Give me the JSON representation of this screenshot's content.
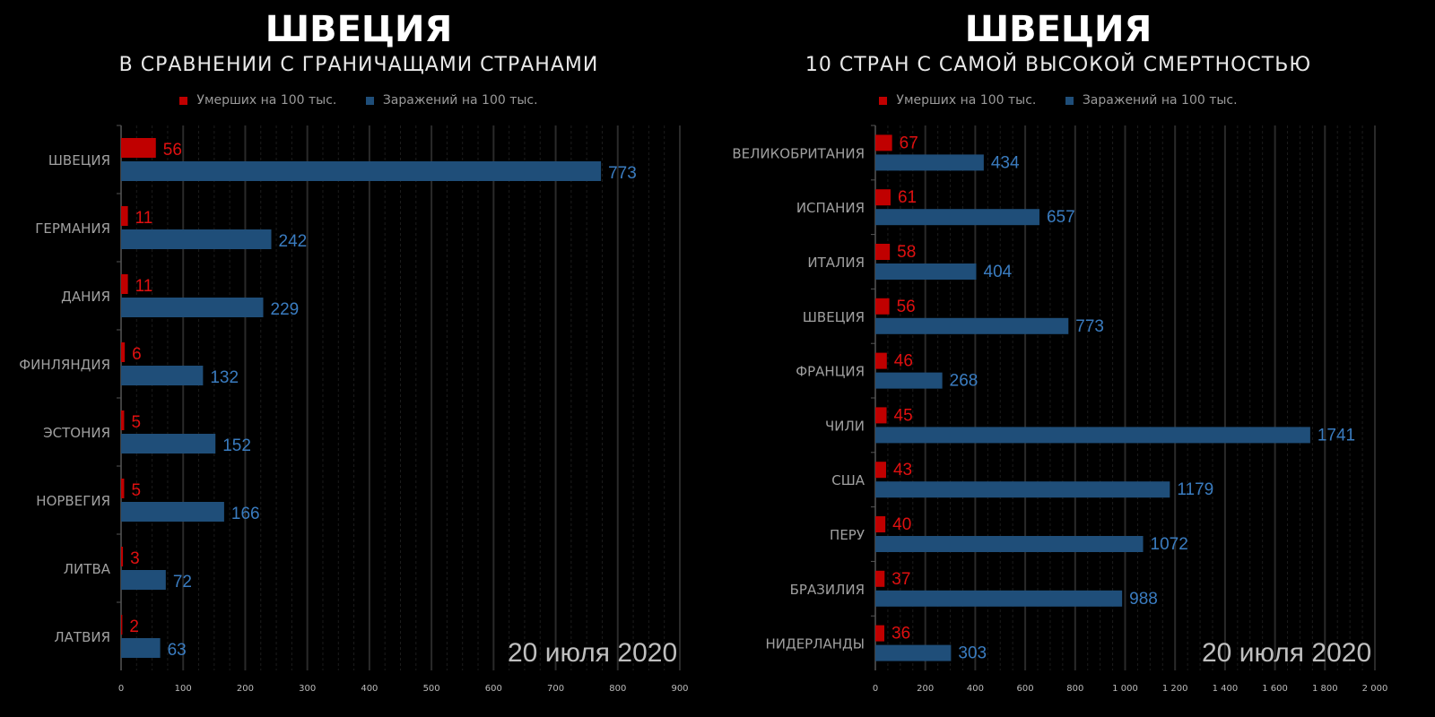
{
  "colors": {
    "deaths": "#c00000",
    "cases": "#1f4e79",
    "deaths_label": "#e01010",
    "cases_label": "#3a7cc0",
    "category_label": "#a0a0a0"
  },
  "chart_data": [
    {
      "type": "bar",
      "orientation": "horizontal",
      "title": "ШВЕЦИЯ",
      "subtitle": "В СРАВНЕНИИ С ГРАНИЧАЩАМИ СТРАНАМИ",
      "legend_position": "top",
      "annotation": "20 июля 2020",
      "categories": [
        "ШВЕЦИЯ",
        "ГЕРМАНИЯ",
        "ДАНИЯ",
        "ФИНЛЯНДИЯ",
        "ЭСТОНИЯ",
        "НОРВЕГИЯ",
        "ЛИТВА",
        "ЛАТВИЯ"
      ],
      "series": [
        {
          "name": "Умерших на 100 тыс.",
          "values": [
            56,
            11,
            11,
            6,
            5,
            5,
            3,
            2
          ]
        },
        {
          "name": "Заражений на 100 тыс.",
          "values": [
            773,
            242,
            229,
            132,
            152,
            166,
            72,
            63
          ]
        }
      ],
      "xlim": [
        0,
        900
      ],
      "ticks": [
        "0",
        "100",
        "200",
        "300",
        "400",
        "500",
        "600",
        "700",
        "800",
        "900"
      ],
      "grid": true
    },
    {
      "type": "bar",
      "orientation": "horizontal",
      "title": "ШВЕЦИЯ",
      "subtitle": "10 СТРАН С САМОЙ ВЫСОКОЙ СМЕРТНОСТЬЮ",
      "legend_position": "top",
      "annotation": "20 июля 2020",
      "categories": [
        "ВЕЛИКОБРИТАНИЯ",
        "ИСПАНИЯ",
        "ИТАЛИЯ",
        "ШВЕЦИЯ",
        "ФРАНЦИЯ",
        "ЧИЛИ",
        "США",
        "ПЕРУ",
        "БРАЗИЛИЯ",
        "НИДЕРЛАНДЫ"
      ],
      "series": [
        {
          "name": "Умерших на 100 тыс.",
          "values": [
            67,
            61,
            58,
            56,
            46,
            45,
            43,
            40,
            37,
            36
          ]
        },
        {
          "name": "Заражений на 100 тыс.",
          "values": [
            434,
            657,
            404,
            773,
            268,
            1741,
            1179,
            1072,
            988,
            303
          ]
        }
      ],
      "xlim": [
        0,
        2000
      ],
      "ticks": [
        "0",
        "200",
        "400",
        "600",
        "800",
        "1 000",
        "1 200",
        "1 400",
        "1 600",
        "1 800",
        "2 000"
      ],
      "grid": true
    }
  ]
}
